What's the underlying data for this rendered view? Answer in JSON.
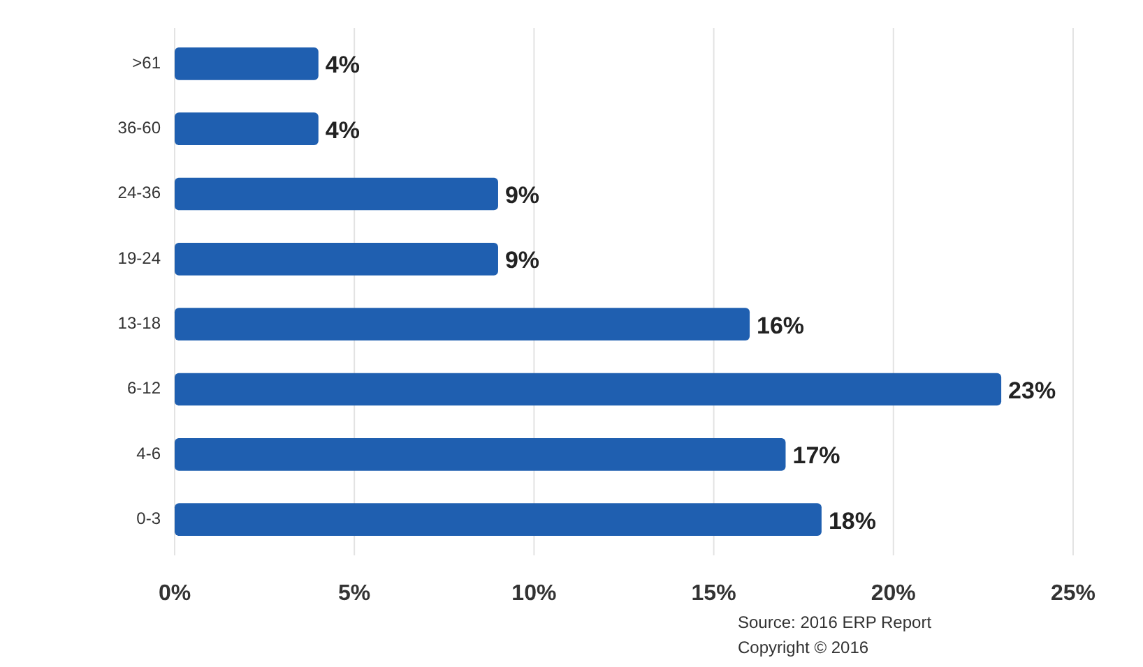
{
  "chart_data": {
    "type": "bar",
    "orientation": "horizontal",
    "categories": [
      ">61",
      "36-60",
      "24-36",
      "19-24",
      "13-18",
      "6-12",
      "4-6",
      "0-3"
    ],
    "values": [
      4,
      4,
      9,
      9,
      16,
      23,
      17,
      18
    ],
    "value_labels": [
      "4%",
      "4%",
      "9%",
      "9%",
      "16%",
      "23%",
      "17%",
      "18%"
    ],
    "color": "#1f5fb0",
    "xlim": [
      0,
      25
    ],
    "xticks": [
      {
        "value": 0,
        "label": "0%"
      },
      {
        "value": 5,
        "label": "5%"
      },
      {
        "value": 10,
        "label": "10%"
      },
      {
        "value": 15,
        "label": "15%"
      },
      {
        "value": 20,
        "label": "20%"
      },
      {
        "value": 25,
        "label": "25%"
      }
    ],
    "grid": "x",
    "annotations": [
      "Source: 2016 ERP Report",
      "Copyright © 2016"
    ]
  }
}
